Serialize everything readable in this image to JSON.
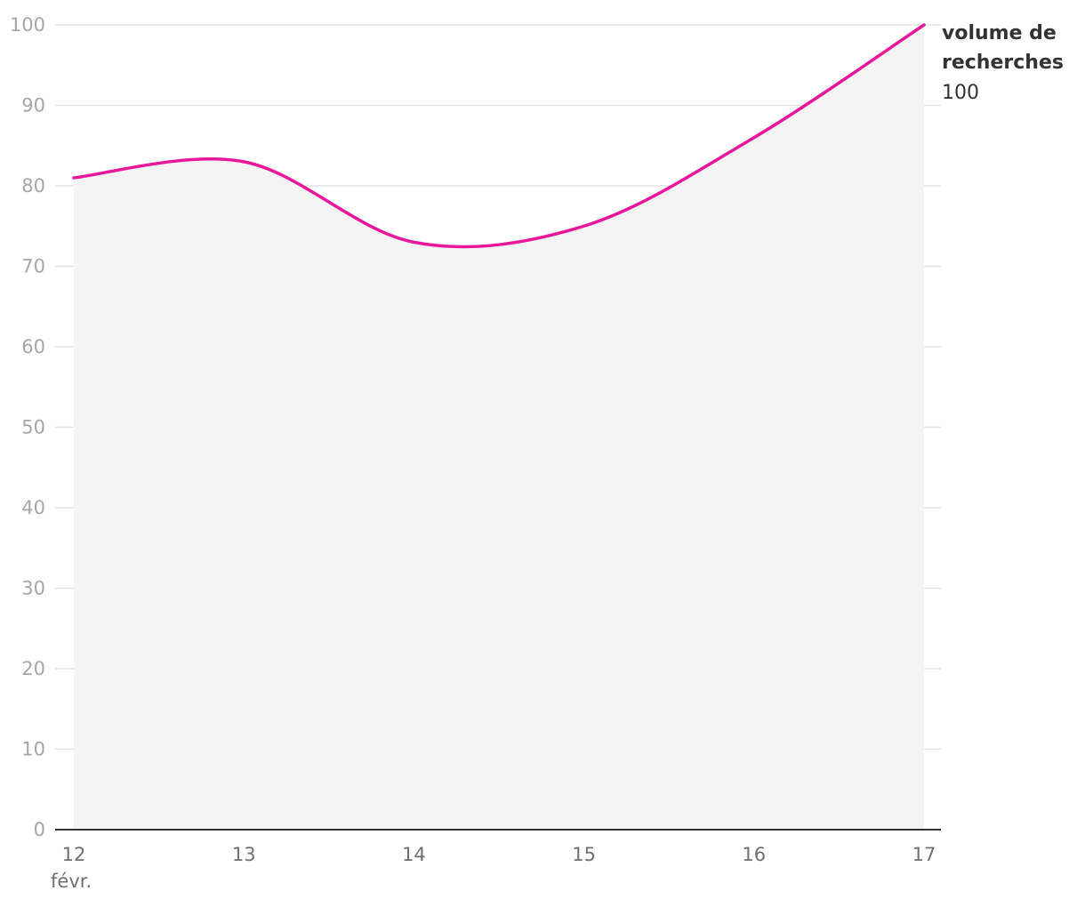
{
  "chart_data": {
    "type": "area",
    "x": [
      "12",
      "13",
      "14",
      "15",
      "16",
      "17"
    ],
    "x_first_sublabel": "févr.",
    "series": [
      {
        "name": "volume de recherches",
        "values": [
          81,
          83,
          73,
          75,
          86,
          100
        ],
        "color": "#e8179b",
        "fill_color": "#f4f4f5"
      }
    ],
    "end_label": {
      "line1": "volume de",
      "line2": "recherches",
      "value": "100"
    },
    "y_ticks": [
      "0",
      "10",
      "20",
      "30",
      "40",
      "50",
      "60",
      "70",
      "80",
      "90",
      "100"
    ],
    "ylim": [
      0,
      100
    ],
    "grid": true
  }
}
